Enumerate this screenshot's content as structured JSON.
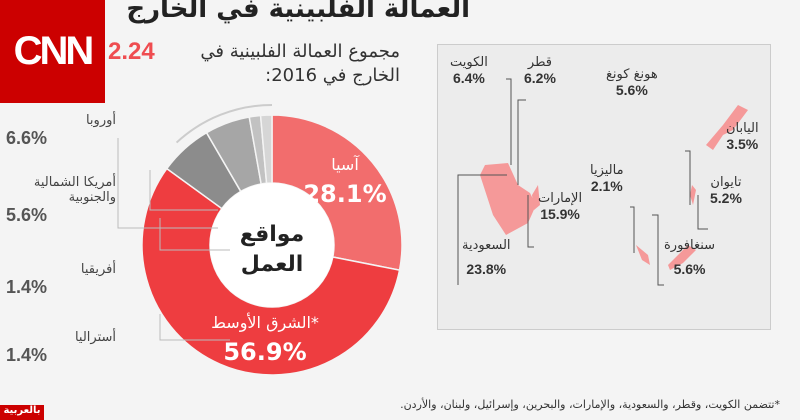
{
  "brand": {
    "logo": "CNN",
    "page_indicator": "2.24",
    "footer_logo": "بالعربية"
  },
  "title": "العمالة الفلبينية في الخارج",
  "subtitle": "مجموع العمالة الفلبينية في الخارج في 2016:",
  "footnote": "*تتضمن الكويت، وقطر، والسعودية، والإمارات، والبحرين، وإسرائيل، ولبنان، والأردن.",
  "colors": {
    "asia": "#f26d6d",
    "middle_east": "#ee3d40",
    "gray1": "#8c8c8c",
    "gray2": "#a6a6a6",
    "gray3": "#c2c2c2",
    "gray4": "#d6d6d6",
    "brand": "#cc0000"
  },
  "chart_data": {
    "type": "pie",
    "donut": true,
    "center_label": "مواقع العمل",
    "slices": [
      {
        "name": "آسيا",
        "value": 28.1,
        "label": "28.1%"
      },
      {
        "name": "الشرق الأوسط*",
        "value": 56.9,
        "label": "56.9%"
      },
      {
        "name": "أوروبا",
        "value": 6.6,
        "label": "6.6%"
      },
      {
        "name": "أمريكا الشمالية والجنوبية",
        "value": 5.6,
        "label": "5.6%"
      },
      {
        "name": "أفريقيا",
        "value": 1.4,
        "label": "1.4%"
      },
      {
        "name": "أستراليا",
        "value": 1.4,
        "label": "1.4%"
      }
    ]
  },
  "map_labels": [
    {
      "name": "الكويت",
      "value": "6.4%"
    },
    {
      "name": "قطر",
      "value": "6.2%"
    },
    {
      "name": "هونغ كونغ",
      "value": "5.6%"
    },
    {
      "name": "اليابان",
      "value": "3.5%"
    },
    {
      "name": "ماليزيا",
      "value": "2.1%"
    },
    {
      "name": "تايوان",
      "value": "5.2%"
    },
    {
      "name": "الإمارات",
      "value": "15.9%"
    },
    {
      "name": "السعودية",
      "value": "23.8%"
    },
    {
      "name": "سنغافورة",
      "value": "5.6%"
    }
  ]
}
